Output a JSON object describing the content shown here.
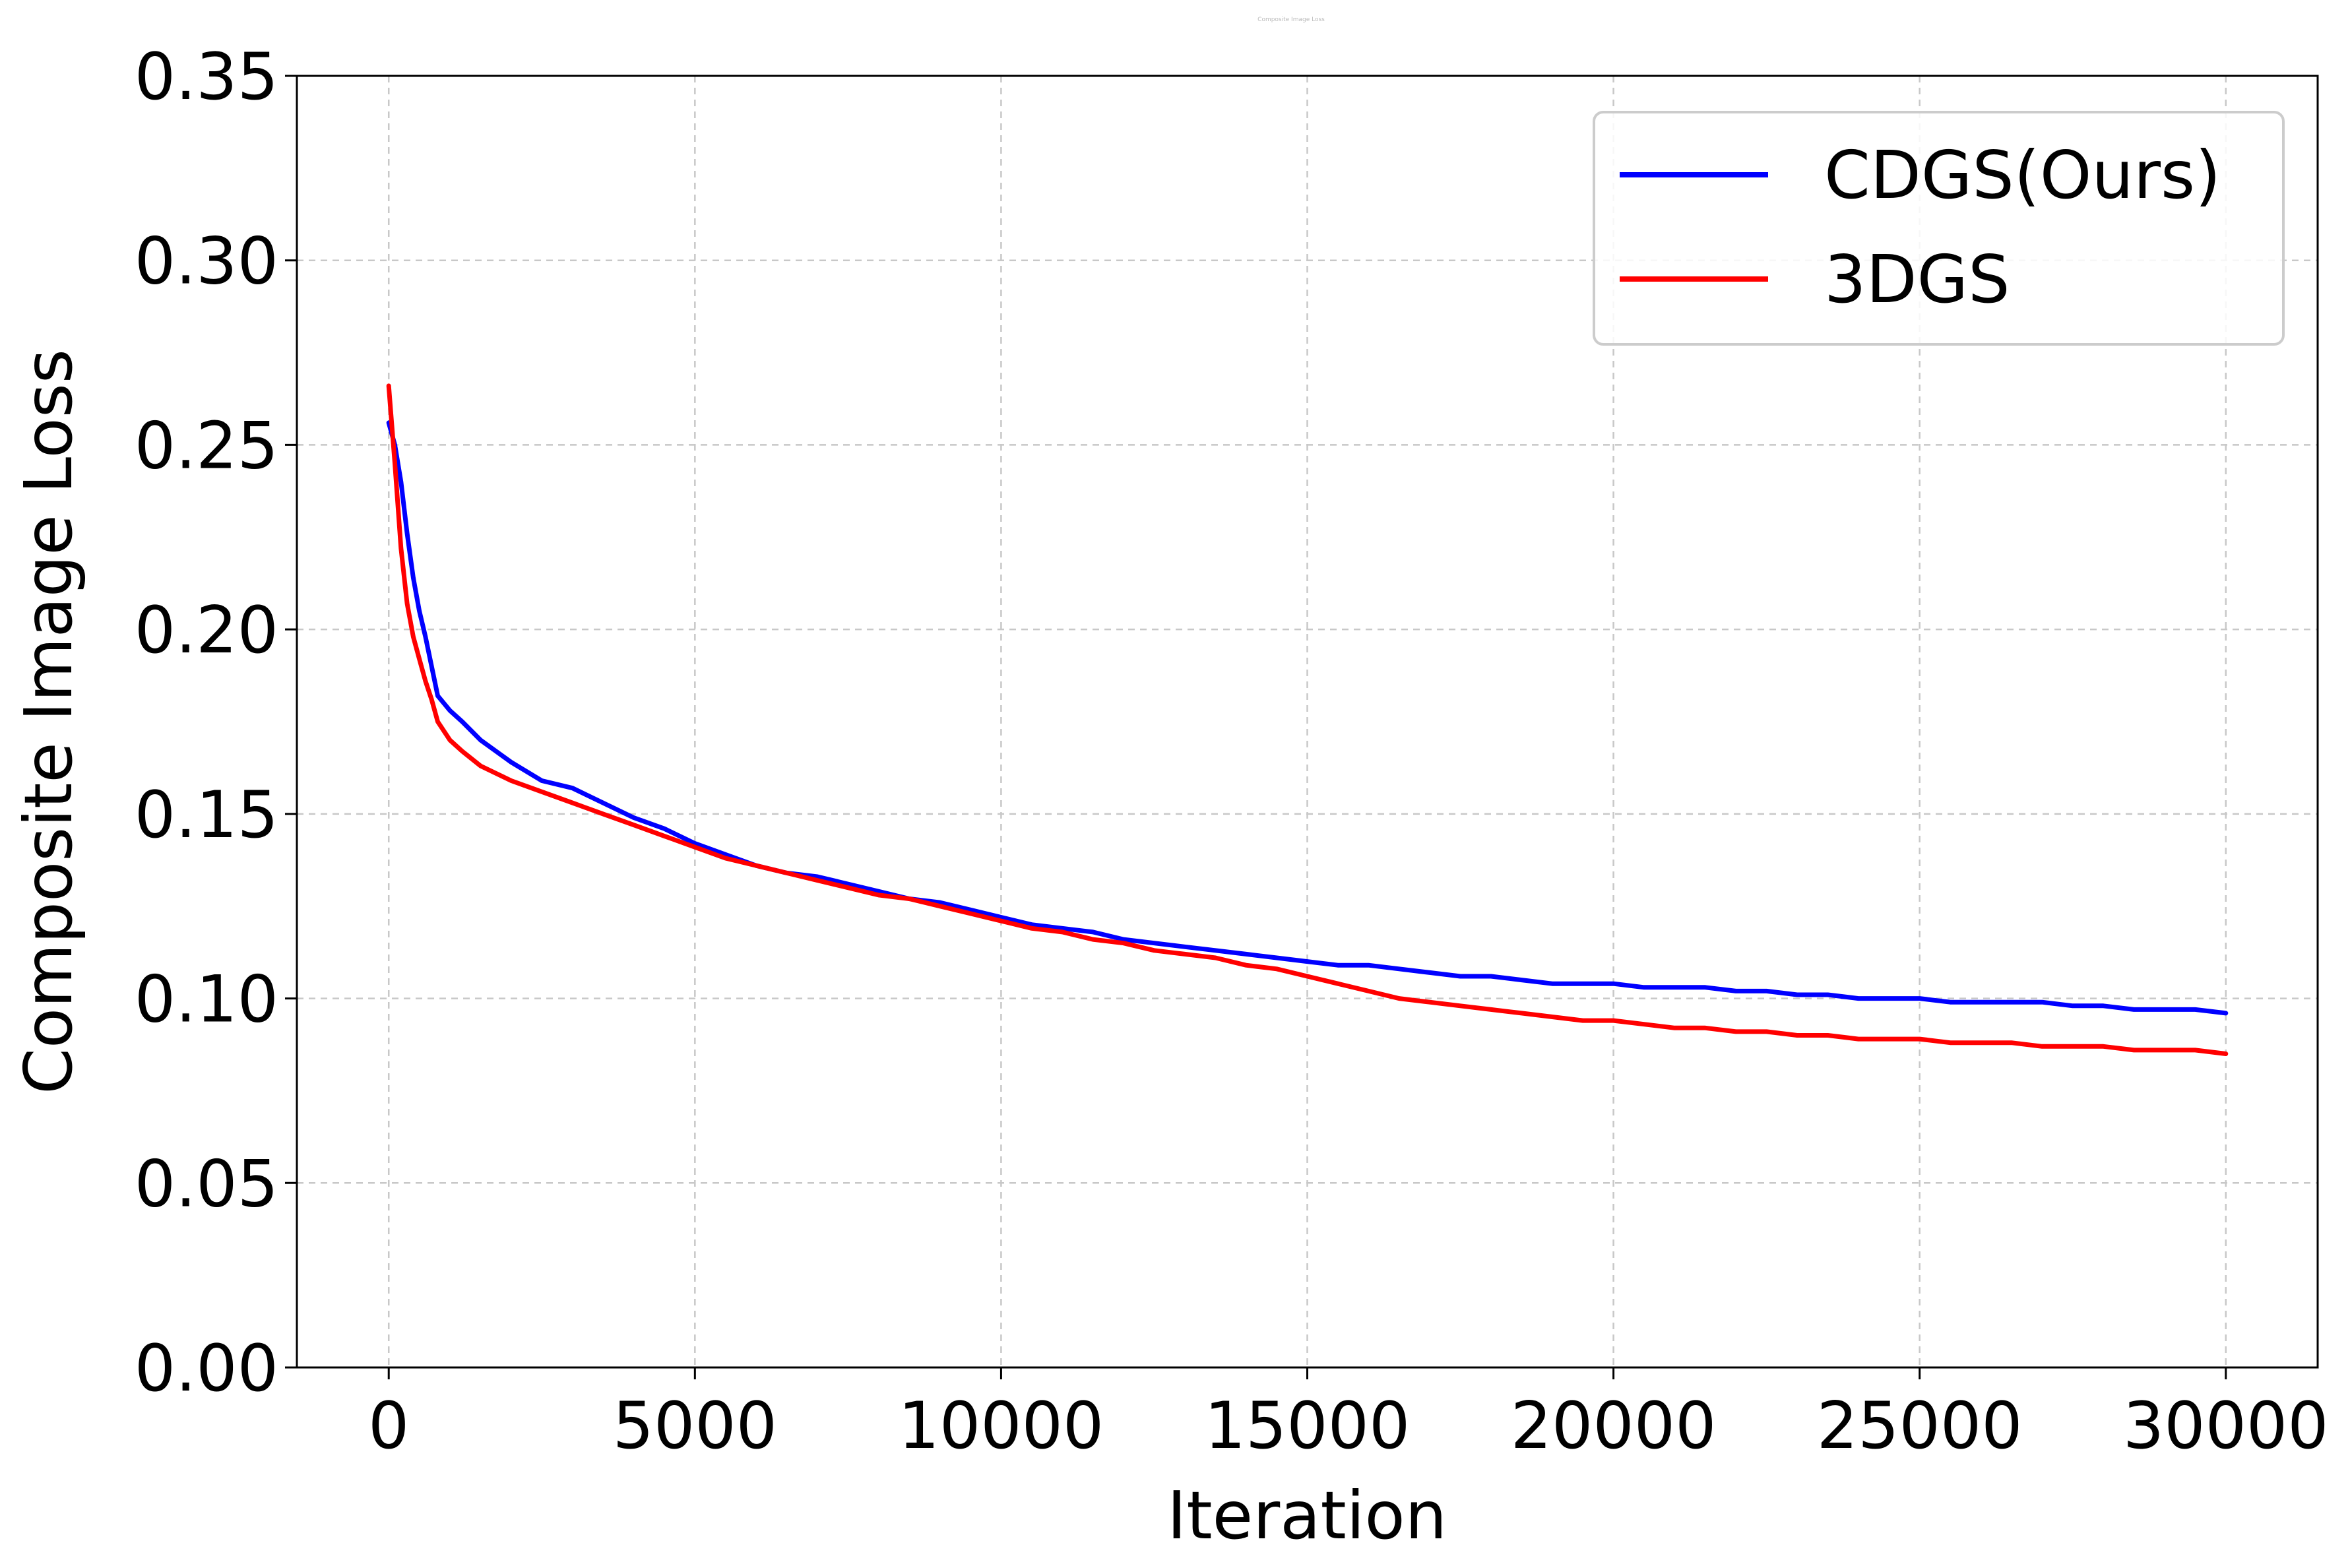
{
  "chart_data": {
    "type": "line",
    "title": "Composite Image Loss",
    "xlabel": "Iteration",
    "ylabel": "Composite Image Loss",
    "xlim": [
      -1500,
      31500
    ],
    "ylim": [
      0.0,
      0.35
    ],
    "xticks": [
      0,
      5000,
      10000,
      15000,
      20000,
      25000,
      30000
    ],
    "xtick_labels": [
      "0",
      "5000",
      "10000",
      "15000",
      "20000",
      "25000",
      "30000"
    ],
    "yticks": [
      0.0,
      0.05,
      0.1,
      0.15,
      0.2,
      0.25,
      0.3,
      0.35
    ],
    "ytick_labels": [
      "0.00",
      "0.05",
      "0.10",
      "0.15",
      "0.20",
      "0.25",
      "0.30",
      "0.35"
    ],
    "grid": true,
    "legend_position": "top-right",
    "series": [
      {
        "name": "CDGS(Ours)",
        "color": "#0000ff",
        "x": [
          0,
          100,
          200,
          300,
          400,
          500,
          600,
          700,
          800,
          1000,
          1200,
          1500,
          2000,
          2500,
          3000,
          3500,
          4000,
          4500,
          5000,
          5500,
          6000,
          6500,
          7000,
          7500,
          8000,
          8500,
          9000,
          9500,
          10000,
          10500,
          11000,
          11500,
          12000,
          12500,
          13000,
          13500,
          14000,
          14500,
          15000,
          15500,
          16000,
          16500,
          17000,
          17500,
          18000,
          18500,
          19000,
          19500,
          20000,
          20500,
          21000,
          21500,
          22000,
          22500,
          23000,
          23500,
          24000,
          24500,
          25000,
          25500,
          26000,
          26500,
          27000,
          27500,
          28000,
          28500,
          29000,
          29500,
          30000
        ],
        "values": [
          0.256,
          0.25,
          0.24,
          0.226,
          0.214,
          0.205,
          0.198,
          0.19,
          0.182,
          0.178,
          0.175,
          0.17,
          0.164,
          0.159,
          0.157,
          0.153,
          0.149,
          0.146,
          0.142,
          0.139,
          0.136,
          0.134,
          0.133,
          0.131,
          0.129,
          0.127,
          0.126,
          0.124,
          0.122,
          0.12,
          0.119,
          0.118,
          0.116,
          0.115,
          0.114,
          0.113,
          0.112,
          0.111,
          0.11,
          0.109,
          0.109,
          0.108,
          0.107,
          0.106,
          0.106,
          0.105,
          0.104,
          0.104,
          0.104,
          0.103,
          0.103,
          0.103,
          0.102,
          0.102,
          0.101,
          0.101,
          0.1,
          0.1,
          0.1,
          0.099,
          0.099,
          0.099,
          0.099,
          0.098,
          0.098,
          0.097,
          0.097,
          0.097,
          0.096
        ]
      },
      {
        "name": "3DGS",
        "color": "#ff0000",
        "x": [
          0,
          100,
          200,
          300,
          400,
          500,
          600,
          700,
          800,
          1000,
          1200,
          1500,
          2000,
          2500,
          3000,
          3500,
          4000,
          4500,
          5000,
          5500,
          6000,
          6500,
          7000,
          7500,
          8000,
          8500,
          9000,
          9500,
          10000,
          10500,
          11000,
          11500,
          12000,
          12500,
          13000,
          13500,
          14000,
          14500,
          15000,
          15500,
          16000,
          16500,
          17000,
          17500,
          18000,
          18500,
          19000,
          19500,
          20000,
          20500,
          21000,
          21500,
          22000,
          22500,
          23000,
          23500,
          24000,
          24500,
          25000,
          25500,
          26000,
          26500,
          27000,
          27500,
          28000,
          28500,
          29000,
          29500,
          30000
        ],
        "values": [
          0.266,
          0.245,
          0.222,
          0.207,
          0.198,
          0.192,
          0.186,
          0.181,
          0.175,
          0.17,
          0.167,
          0.163,
          0.159,
          0.156,
          0.153,
          0.15,
          0.147,
          0.144,
          0.141,
          0.138,
          0.136,
          0.134,
          0.132,
          0.13,
          0.128,
          0.127,
          0.125,
          0.123,
          0.121,
          0.119,
          0.118,
          0.116,
          0.115,
          0.113,
          0.112,
          0.111,
          0.109,
          0.108,
          0.106,
          0.104,
          0.102,
          0.1,
          0.099,
          0.098,
          0.097,
          0.096,
          0.095,
          0.094,
          0.094,
          0.093,
          0.092,
          0.092,
          0.091,
          0.091,
          0.09,
          0.09,
          0.089,
          0.089,
          0.089,
          0.088,
          0.088,
          0.088,
          0.087,
          0.087,
          0.087,
          0.086,
          0.086,
          0.086,
          0.085
        ]
      }
    ]
  },
  "colors": {
    "grid": "#c8c8c8",
    "axis": "#000000",
    "legend_border": "#cccccc"
  }
}
